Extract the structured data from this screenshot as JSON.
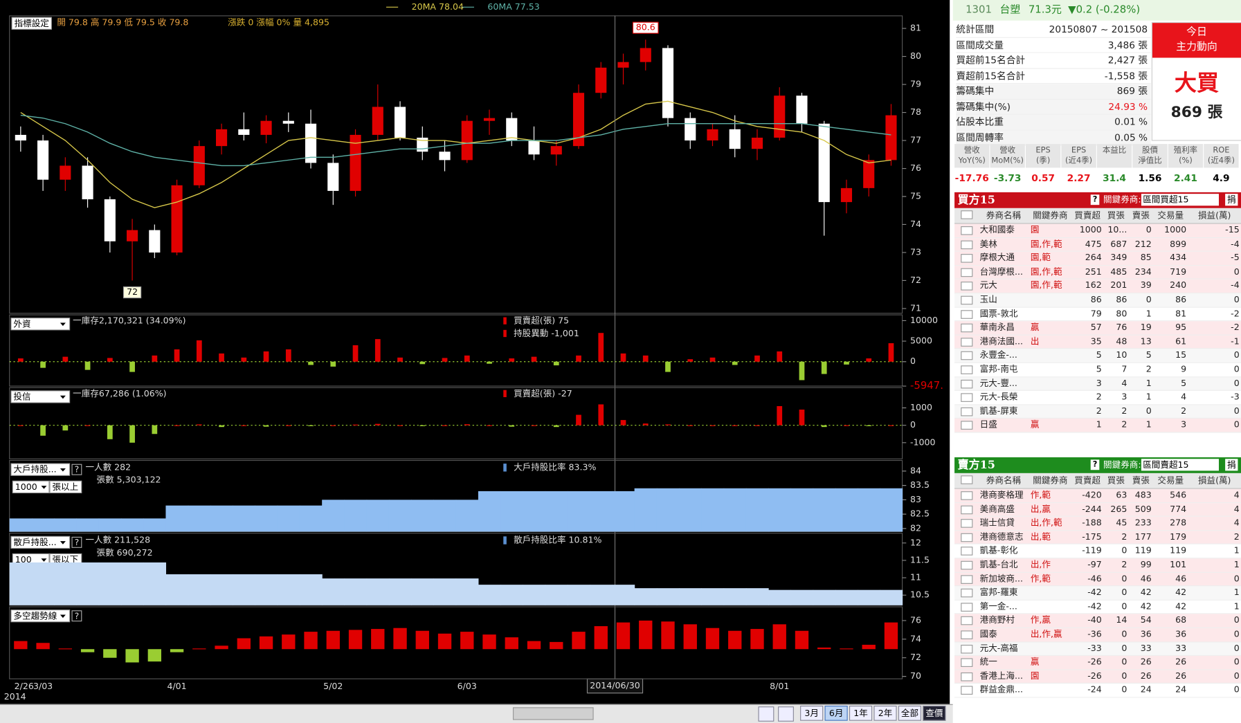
{
  "chart_data": [
    {
      "type": "candlestick",
      "up_color": "#e00000",
      "down_color": "#ffffff",
      "categories": [
        "2/26",
        "3/03",
        null,
        null,
        null,
        null,
        null,
        "4/01",
        null,
        null,
        null,
        null,
        null,
        null,
        "5/02",
        null,
        null,
        null,
        null,
        null,
        "6/03",
        null,
        null,
        null,
        null,
        null,
        null,
        null,
        null,
        null,
        null,
        null,
        null,
        null,
        "8/01",
        null,
        null,
        null,
        null,
        null
      ],
      "x_year": "2014",
      "crosshair_label": "2014/06/30",
      "settings_button": "指標設定",
      "info_ohlc": "開 79.8 高 79.9 低 79.5 收 79.8",
      "info_change": "漲跌 0 漲幅 0% 量 4,895",
      "high_label": "80.6",
      "low_label": "72",
      "ohlc": [
        [
          77.2,
          77.5,
          76.6,
          77.0
        ],
        [
          77.0,
          77.2,
          75.2,
          75.6
        ],
        [
          75.6,
          76.4,
          75.2,
          76.1
        ],
        [
          76.1,
          76.4,
          74.6,
          74.9
        ],
        [
          74.9,
          75.0,
          73.0,
          73.4
        ],
        [
          73.4,
          74.2,
          72.0,
          73.8
        ],
        [
          73.8,
          74.0,
          72.8,
          73.0
        ],
        [
          73.0,
          75.6,
          72.9,
          75.4
        ],
        [
          75.4,
          77.0,
          75.3,
          76.8
        ],
        [
          76.8,
          77.6,
          76.5,
          77.4
        ],
        [
          77.4,
          78.0,
          77.0,
          77.2
        ],
        [
          77.2,
          77.9,
          76.9,
          77.7
        ],
        [
          77.7,
          78.0,
          77.3,
          77.6
        ],
        [
          77.6,
          78.1,
          76.0,
          76.2
        ],
        [
          76.2,
          76.5,
          74.7,
          75.2
        ],
        [
          75.2,
          77.4,
          75.0,
          77.2
        ],
        [
          77.2,
          79.0,
          77.0,
          78.2
        ],
        [
          78.2,
          78.4,
          77.0,
          77.1
        ],
        [
          77.1,
          77.5,
          76.3,
          76.6
        ],
        [
          76.6,
          77.0,
          75.9,
          76.3
        ],
        [
          76.3,
          77.9,
          76.2,
          77.7
        ],
        [
          77.7,
          78.1,
          77.2,
          77.8
        ],
        [
          77.8,
          78.0,
          76.8,
          77.0
        ],
        [
          77.0,
          77.5,
          76.3,
          76.5
        ],
        [
          76.5,
          77.0,
          76.1,
          76.8
        ],
        [
          76.8,
          79.0,
          76.7,
          78.7
        ],
        [
          78.7,
          79.8,
          78.5,
          79.6
        ],
        [
          79.6,
          80.1,
          79.0,
          79.8
        ],
        [
          79.8,
          80.6,
          79.5,
          80.3
        ],
        [
          80.3,
          80.4,
          77.5,
          77.8
        ],
        [
          77.8,
          78.0,
          76.7,
          77.0
        ],
        [
          77.0,
          77.6,
          76.8,
          77.4
        ],
        [
          77.4,
          77.9,
          76.4,
          76.7
        ],
        [
          76.7,
          77.4,
          76.3,
          77.1
        ],
        [
          77.1,
          78.9,
          77.0,
          78.6
        ],
        [
          78.6,
          78.7,
          77.3,
          77.6
        ],
        [
          77.6,
          77.7,
          73.6,
          74.8
        ],
        [
          74.8,
          75.6,
          74.4,
          75.3
        ],
        [
          75.3,
          76.5,
          75.0,
          76.3
        ],
        [
          76.3,
          78.3,
          76.1,
          77.9
        ]
      ],
      "series": [
        {
          "name": "20MA 78.04",
          "color": "#d8c84a",
          "values": [
            78.0,
            77.5,
            77.0,
            76.3,
            75.5,
            74.9,
            74.6,
            74.8,
            75.1,
            75.5,
            76.0,
            76.5,
            77.0,
            77.1,
            77.0,
            76.9,
            77.0,
            77.1,
            77.0,
            77.0,
            76.9,
            77.0,
            77.1,
            77.0,
            76.9,
            77.1,
            77.4,
            77.9,
            78.3,
            78.4,
            78.2,
            78.0,
            77.7,
            77.5,
            77.4,
            77.3,
            77.0,
            76.5,
            76.2,
            76.3
          ]
        },
        {
          "name": "60MA 77.53",
          "color": "#5fb3a8",
          "values": [
            77.9,
            77.8,
            77.6,
            77.3,
            76.9,
            76.6,
            76.4,
            76.3,
            76.2,
            76.1,
            76.1,
            76.2,
            76.3,
            76.4,
            76.4,
            76.5,
            76.6,
            76.7,
            76.7,
            76.8,
            76.9,
            76.9,
            77.0,
            77.0,
            77.0,
            77.1,
            77.2,
            77.4,
            77.5,
            77.6,
            77.6,
            77.6,
            77.6,
            77.6,
            77.6,
            77.6,
            77.5,
            77.4,
            77.3,
            77.2
          ]
        }
      ],
      "ylim": [
        70.83,
        81.45
      ],
      "yticks": [
        71,
        72,
        73,
        74,
        75,
        76,
        77,
        78,
        79,
        80,
        81
      ]
    },
    {
      "type": "bar",
      "selector": "外資",
      "info": [
        "一庫存2,170,321 (34.09%)",
        "買賣超(張) 75",
        "持股異動 -1,001"
      ],
      "up_color": "#e00000",
      "down_color": "#9acd32",
      "values": [
        800,
        -1500,
        1200,
        -2000,
        900,
        -2500,
        1500,
        3000,
        5200,
        2000,
        1000,
        2500,
        3000,
        -800,
        -1200,
        4000,
        5500,
        1000,
        -600,
        900,
        1500,
        -500,
        800,
        1200,
        -900,
        1500,
        7000,
        2000,
        1500,
        -2500,
        600,
        1000,
        -800,
        1500,
        2500,
        -4500,
        -3000,
        -700,
        800,
        4500
      ],
      "ylim": [
        -5947,
        11400
      ],
      "yticks": [
        {
          "value": -5947,
          "label": "-5947."
        },
        0,
        5000,
        10000
      ]
    },
    {
      "type": "bar",
      "selector": "投信",
      "info": [
        "一庫存67,286 (1.06%)",
        "買賣超(張) -27"
      ],
      "up_color": "#e00000",
      "down_color": "#9acd32",
      "values": [
        0,
        -600,
        -300,
        0,
        -800,
        -1000,
        -500,
        0,
        50,
        -100,
        0,
        -80,
        0,
        -50,
        0,
        40,
        80,
        0,
        -50,
        0,
        60,
        0,
        -80,
        0,
        -100,
        600,
        1200,
        300,
        100,
        50,
        0,
        0,
        0,
        0,
        1100,
        900,
        -100,
        0,
        -50,
        0
      ],
      "ylim": [
        -1930,
        2160
      ],
      "yticks": [
        -1000,
        0,
        1000
      ]
    },
    {
      "type": "area",
      "selector": "大戶持股...",
      "threshold": "1000",
      "threshold_unit": "張以上",
      "help_icon": "?",
      "info": [
        "一人數 282",
        "張數 5,303,122",
        "大戶持股比率 83.3%"
      ],
      "color": "#8fbdf2",
      "values": [
        82.35,
        82.35,
        82.35,
        82.35,
        82.35,
        82.35,
        82.35,
        82.8,
        82.8,
        82.8,
        82.8,
        82.8,
        82.8,
        82.8,
        83.0,
        83.0,
        83.0,
        83.0,
        83.0,
        83.0,
        83.0,
        83.3,
        83.3,
        83.3,
        83.3,
        83.3,
        83.3,
        83.3,
        83.4,
        83.4,
        83.4,
        83.4,
        83.4,
        83.4,
        83.4,
        83.4,
        83.4,
        83.4,
        83.4,
        83.4
      ],
      "ylim": [
        81.89,
        84.37
      ],
      "yticks": [
        82,
        82.5,
        83,
        83.5,
        84
      ]
    },
    {
      "type": "area",
      "selector": "散戶持股...",
      "threshold": "100",
      "threshold_unit": "張以下",
      "help_icon": "?",
      "info": [
        "一人數 211,528",
        "張數 690,272",
        "散戶持股比率 10.81%"
      ],
      "color": "#c4daf4",
      "values": [
        11.44,
        11.44,
        11.44,
        11.44,
        11.44,
        11.44,
        11.44,
        11.1,
        11.1,
        11.1,
        11.1,
        11.1,
        11.1,
        11.1,
        10.98,
        10.98,
        10.98,
        10.98,
        10.98,
        10.98,
        10.98,
        10.8,
        10.8,
        10.8,
        10.8,
        10.8,
        10.8,
        10.8,
        10.7,
        10.7,
        10.7,
        10.7,
        10.7,
        10.7,
        10.65,
        10.65,
        10.65,
        10.65,
        10.65,
        10.65
      ],
      "ylim": [
        10.21,
        12.28
      ],
      "yticks": [
        10.5,
        11,
        11.5,
        12
      ]
    },
    {
      "type": "oscillator",
      "selector": "多空趨勢線",
      "help_icon": "?",
      "up_color": "#e00000",
      "down_color": "#9acd32",
      "values": [
        73.8,
        73.6,
        73.0,
        72.6,
        72.0,
        71.5,
        71.6,
        72.6,
        73.0,
        73.3,
        74.1,
        74.3,
        74.5,
        74.8,
        74.9,
        75.0,
        75.1,
        75.2,
        74.9,
        74.6,
        74.8,
        74.5,
        74.2,
        73.8,
        73.7,
        74.8,
        75.4,
        75.8,
        76.0,
        75.9,
        75.6,
        75.2,
        74.9,
        75.1,
        75.6,
        74.9,
        73.1,
        73.0,
        73.4,
        75.8
      ],
      "ylim": [
        69.74,
        77.48
      ],
      "yticks": [
        70,
        72,
        74,
        76
      ]
    }
  ],
  "quote": {
    "code": "1301",
    "name": "台塑",
    "price": "71.3元",
    "change": "▼0.2 (-0.28%)"
  },
  "stats": {
    "rows": [
      {
        "label": "統計區間",
        "value": "20150807 ~ 201508"
      },
      {
        "label": "區間成交量",
        "value": "3,486 張"
      },
      {
        "label": "買超前15名合計",
        "value": "2,427 張"
      },
      {
        "label": "賣超前15名合計",
        "value": "-1,558 張"
      },
      {
        "label": "籌碼集中",
        "value": "869 張"
      },
      {
        "label": "籌碼集中(%)",
        "value": "24.93 %"
      },
      {
        "label": "佔股本比重",
        "value": "0.01 %"
      },
      {
        "label": "區間周轉率",
        "value": "0.05 %"
      }
    ],
    "badge_line1": "今日",
    "badge_line2": "主力動向",
    "signal": "大買",
    "amount": "869 張"
  },
  "ratios": {
    "headers": [
      [
        "營收",
        "YoY(%)"
      ],
      [
        "營收",
        "MoM(%)"
      ],
      [
        "EPS",
        "(季)"
      ],
      [
        "EPS",
        "(近4季)"
      ],
      [
        "本益比"
      ],
      [
        "股價",
        "淨值比"
      ],
      [
        "殖利率",
        "(%)"
      ],
      [
        "ROE",
        "(近4季)"
      ]
    ],
    "values": [
      -17.76,
      -3.73,
      0.57,
      2.27,
      31.4,
      1.56,
      2.41,
      4.9
    ]
  },
  "buy": {
    "title": "買方15",
    "filter_label": "關鍵券商:",
    "filter": "區間買超15",
    "button": "捐",
    "columns": [
      "券商名稱",
      "關鍵券商",
      "買賣超",
      "買張",
      "賣張",
      "交易量",
      "損益(萬)"
    ],
    "rows": [
      [
        "大和國泰",
        "園",
        1000,
        "10...",
        0,
        1000,
        -15
      ],
      [
        "美林",
        "園,作,範",
        475,
        687,
        212,
        899,
        -4
      ],
      [
        "摩根大通",
        "園,範",
        264,
        349,
        85,
        434,
        -5
      ],
      [
        "台灣摩根...",
        "園,作,範",
        251,
        485,
        234,
        719,
        0
      ],
      [
        "元大",
        "園,作,範",
        162,
        201,
        39,
        240,
        -4
      ],
      [
        "玉山",
        null,
        86,
        86,
        0,
        86,
        0
      ],
      [
        "國票-敦北",
        null,
        79,
        80,
        1,
        81,
        -2
      ],
      [
        "華南永昌",
        "贏",
        57,
        76,
        19,
        95,
        -2
      ],
      [
        "港商法國...",
        "出",
        35,
        48,
        13,
        61,
        -1
      ],
      [
        "永豐金-...",
        null,
        5,
        10,
        5,
        15,
        0
      ],
      [
        "富邦-南屯",
        null,
        5,
        7,
        2,
        9,
        0
      ],
      [
        "元大-豐...",
        null,
        3,
        4,
        1,
        5,
        0
      ],
      [
        "元大-長榮",
        null,
        2,
        3,
        1,
        4,
        -3
      ],
      [
        "凱基-屏東",
        null,
        2,
        2,
        0,
        2,
        0
      ],
      [
        "日盛",
        "贏",
        1,
        2,
        1,
        3,
        0
      ]
    ]
  },
  "sell": {
    "title": "賣方15",
    "filter_label": "關鍵券商:",
    "filter": "區間賣超15",
    "button": "捐",
    "columns": [
      "券商名稱",
      "關鍵券商",
      "買賣超",
      "買張",
      "賣張",
      "交易量",
      "損益(萬)"
    ],
    "rows": [
      [
        "港商麥格理",
        "作,範",
        -420,
        63,
        483,
        546,
        4
      ],
      [
        "美商高盛",
        "出,贏",
        -244,
        265,
        509,
        774,
        4
      ],
      [
        "瑞士信貸",
        "出,作,範",
        -188,
        45,
        233,
        278,
        4
      ],
      [
        "港商德意志",
        "出,範",
        -175,
        2,
        177,
        179,
        2
      ],
      [
        "凱基-彰化",
        null,
        -119,
        0,
        119,
        119,
        1
      ],
      [
        "凱基-台北",
        "出,作",
        -97,
        2,
        99,
        101,
        1
      ],
      [
        "新加坡商...",
        "作,範",
        -46,
        0,
        46,
        46,
        0
      ],
      [
        "富邦-羅東",
        null,
        -42,
        0,
        42,
        42,
        1
      ],
      [
        "第一金-...",
        null,
        -42,
        0,
        42,
        42,
        1
      ],
      [
        "港商野村",
        "作,贏",
        -40,
        14,
        54,
        68,
        0
      ],
      [
        "國泰",
        "出,作,贏",
        -36,
        0,
        36,
        36,
        0
      ],
      [
        "元大-高福",
        null,
        -33,
        0,
        33,
        33,
        0
      ],
      [
        "統一",
        "贏",
        -26,
        0,
        26,
        26,
        0
      ],
      [
        "香港上海...",
        "園",
        -26,
        0,
        26,
        26,
        0
      ],
      [
        "群益金鼎...",
        null,
        -24,
        0,
        24,
        24,
        0
      ]
    ]
  },
  "toolbar": {
    "buttons": [
      "3月",
      "6月",
      "1年",
      "2年",
      "全部",
      "查價"
    ],
    "active": "6月"
  }
}
